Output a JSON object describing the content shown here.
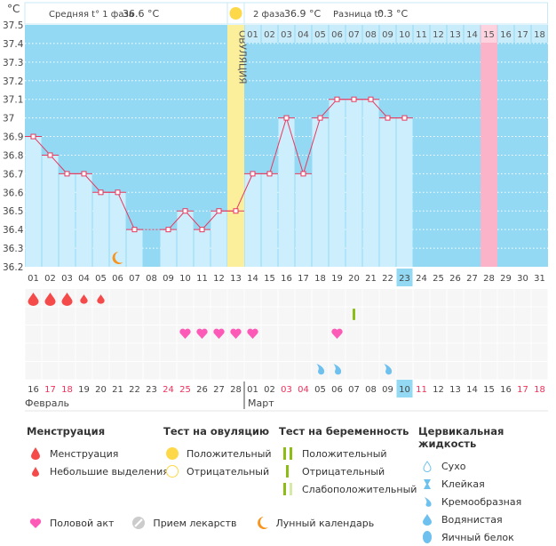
{
  "chart_data": {
    "type": "line",
    "title": "",
    "ylabel": "°C",
    "ylim": [
      36.2,
      37.5
    ],
    "yticks": [
      "37.5",
      "37.4",
      "37.3",
      "37.2",
      "37.1",
      "37",
      "36.9",
      "36.8",
      "36.7",
      "36.6",
      "36.5",
      "36.4",
      "36.3",
      "36.2"
    ],
    "cycle_days": [
      "01",
      "02",
      "03",
      "04",
      "05",
      "06",
      "07",
      "08",
      "09",
      "10",
      "11",
      "12",
      "13",
      "14",
      "15",
      "16",
      "17",
      "18",
      "19",
      "20",
      "21",
      "22",
      "23",
      "24",
      "25",
      "26",
      "27",
      "28",
      "29",
      "30",
      "31"
    ],
    "temperatures": [
      36.9,
      36.8,
      36.7,
      36.7,
      36.6,
      36.6,
      36.4,
      null,
      36.4,
      36.5,
      36.4,
      36.5,
      36.5,
      36.7,
      36.7,
      37.0,
      36.7,
      37.0,
      37.1,
      37.1,
      37.1,
      37.0,
      37.0,
      null,
      null,
      null,
      null,
      null,
      null,
      null,
      null
    ],
    "ovulation_day": 13,
    "current_day": 23,
    "expected_period_day": 28,
    "phase2_days": [
      "01",
      "02",
      "03",
      "04",
      "05",
      "06",
      "07",
      "08",
      "09",
      "10",
      "11",
      "12",
      "13",
      "14",
      "15",
      "16",
      "17",
      "18"
    ],
    "ovulation_label": "ОВУЛЯЦИЯ",
    "phase1_label": "Средняя t° 1 фаза",
    "phase1_value": "36.6 °C",
    "phase2_label": "2 фаза",
    "phase2_value": "36.9 °C",
    "diff_label": "Разница t°",
    "diff_value": "0.3 °C",
    "dates": [
      "16",
      "17",
      "18",
      "19",
      "20",
      "21",
      "22",
      "23",
      "24",
      "25",
      "26",
      "27",
      "28",
      "01",
      "02",
      "03",
      "04",
      "05",
      "06",
      "07",
      "08",
      "09",
      "10",
      "11",
      "12",
      "13",
      "14",
      "15",
      "16",
      "17",
      "18"
    ],
    "red_dates": [
      2,
      3,
      9,
      10,
      16,
      17,
      24,
      30,
      31
    ],
    "months": [
      "Февраль",
      "Март"
    ],
    "menstruation": {
      "1": "heavy",
      "2": "heavy",
      "3": "heavy",
      "4": "light",
      "5": "light"
    },
    "pregnancy_test": {
      "20": "negative"
    },
    "intercourse": [
      10,
      11,
      12,
      13,
      14,
      19
    ],
    "cervical_fluid": {
      "18": "creamy",
      "19": "creamy",
      "22": "creamy"
    },
    "moon_day": 6
  },
  "colors": {
    "bg": "#93d9f3",
    "bar": "#cdeefc",
    "line": "#e8385e",
    "ovulation": "#fbef9c",
    "period": "#fbb3c9",
    "heart": "#fc5ab6",
    "drop": "#f44a4a",
    "test": "#8cbd16",
    "fluid": "#6ec0ee",
    "moon": "#f7941d"
  },
  "legend": {
    "menstruation": {
      "title": "Менструация",
      "items": [
        "Менструация",
        "Небольшие выделения"
      ]
    },
    "ovulation_test": {
      "title": "Тест на овуляцию",
      "items": [
        "Положительный",
        "Отрицательный"
      ]
    },
    "pregnancy_test": {
      "title": "Тест на беременность",
      "items": [
        "Положительный",
        "Отрицательный",
        "Слабоположительный"
      ]
    },
    "cervical": {
      "title": "Цервикальная жидкость",
      "items": [
        "Сухо",
        "Клейкая",
        "Кремообразная",
        "Водянистая",
        "Яичный белок"
      ]
    },
    "other": [
      "Половой акт",
      "Прием лекарств",
      "Лунный календарь"
    ]
  }
}
